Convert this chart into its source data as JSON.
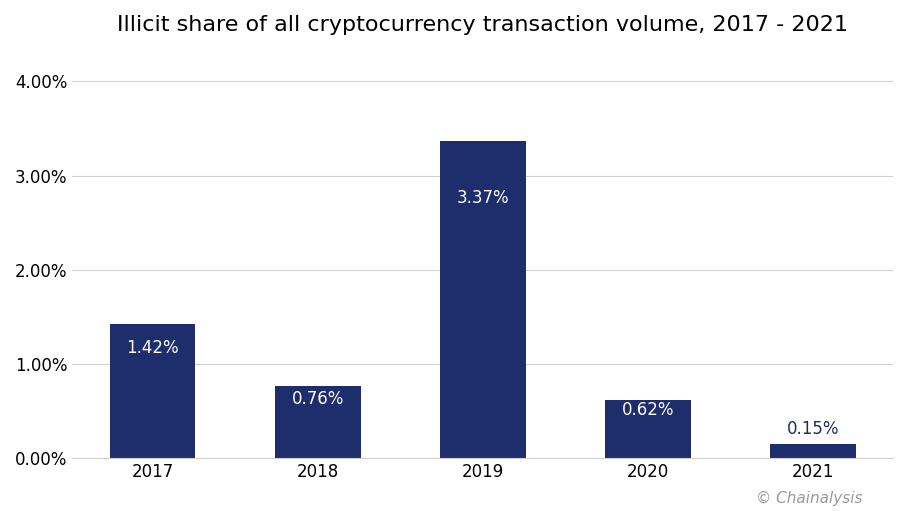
{
  "title": "Illicit share of all cryptocurrency transaction volume, 2017 - 2021",
  "categories": [
    "2017",
    "2018",
    "2019",
    "2020",
    "2021"
  ],
  "values": [
    1.42,
    0.76,
    3.37,
    0.62,
    0.15
  ],
  "bar_color": "#1e2d6b",
  "background_color": "#ffffff",
  "grid_color": "#d0d0d0",
  "yticks": [
    0.0,
    1.0,
    2.0,
    3.0,
    4.0
  ],
  "ylim": [
    0,
    4.3
  ],
  "watermark": "© Chainalysis",
  "title_fontsize": 16,
  "tick_fontsize": 12,
  "label_fontsize": 12,
  "watermark_fontsize": 11,
  "inside_label_color": "#ffffff",
  "outside_label_color": "#1e2d6b",
  "inside_threshold": 0.4
}
